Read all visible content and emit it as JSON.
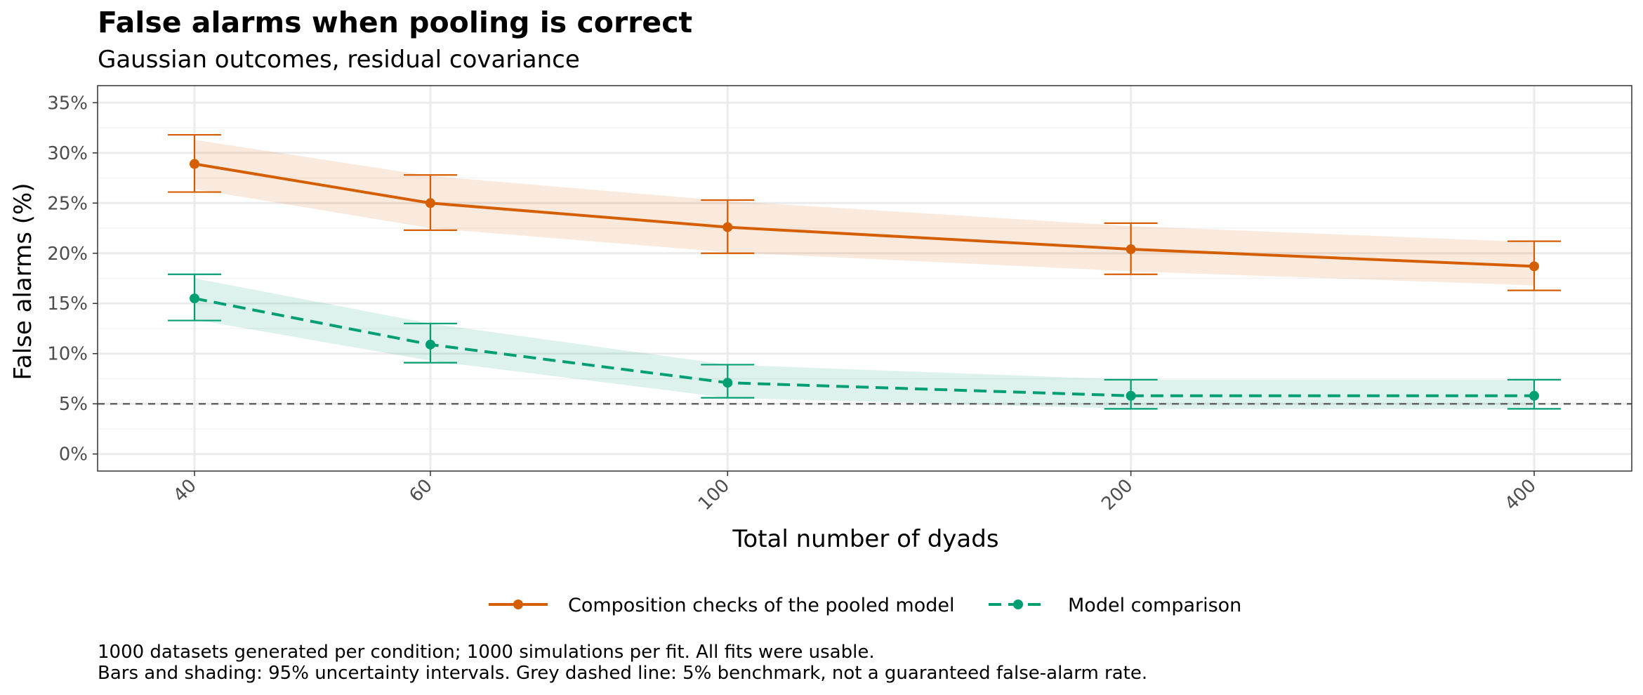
{
  "chart_data": {
    "type": "line",
    "title": "False alarms when pooling is correct",
    "subtitle": "Gaussian outcomes, residual covariance",
    "xlabel": "Total number of dyads",
    "ylabel": "False alarms (%)",
    "x_scale": "log",
    "x": [
      40,
      60,
      100,
      200,
      400
    ],
    "x_tick_labels": [
      "40",
      "60",
      "100",
      "200",
      "400"
    ],
    "y_ticks": [
      0,
      5,
      10,
      15,
      20,
      25,
      30,
      35
    ],
    "y_tick_labels": [
      "0%",
      "5%",
      "10%",
      "15%",
      "20%",
      "25%",
      "30%",
      "35%"
    ],
    "ylim": [
      -1.7,
      36.7
    ],
    "reference_line": {
      "y": 5,
      "style": "dashed",
      "color": "#666666"
    },
    "grid": true,
    "legend_position": "bottom",
    "series": [
      {
        "name": "Composition checks of the pooled model",
        "color": "#D55E00",
        "line_style": "solid",
        "values": [
          28.9,
          25.0,
          22.6,
          20.4,
          18.7
        ],
        "err_low": [
          26.1,
          22.3,
          20.0,
          17.9,
          16.3
        ],
        "err_high": [
          31.8,
          27.8,
          25.3,
          23.0,
          21.2
        ],
        "band_low": [
          26.4,
          22.5,
          20.1,
          18.2,
          16.8
        ],
        "band_high": [
          31.3,
          27.7,
          25.2,
          22.7,
          21.1
        ]
      },
      {
        "name": "Model comparison",
        "color": "#009E73",
        "line_style": "dashed",
        "values": [
          15.5,
          10.9,
          7.1,
          5.8,
          5.8
        ],
        "err_low": [
          13.3,
          9.1,
          5.6,
          4.5,
          4.5
        ],
        "err_high": [
          17.9,
          13.0,
          8.9,
          7.4,
          7.4
        ],
        "band_low": [
          13.4,
          9.3,
          5.6,
          4.5,
          4.5
        ],
        "band_high": [
          17.5,
          13.0,
          8.9,
          7.4,
          7.4
        ]
      }
    ],
    "caption_lines": [
      "1000 datasets generated per condition; 1000 simulations per fit. All fits were usable.",
      "Bars and shading: 95% uncertainty intervals. Grey dashed line: 5% benchmark, not a guaranteed false-alarm rate."
    ]
  }
}
